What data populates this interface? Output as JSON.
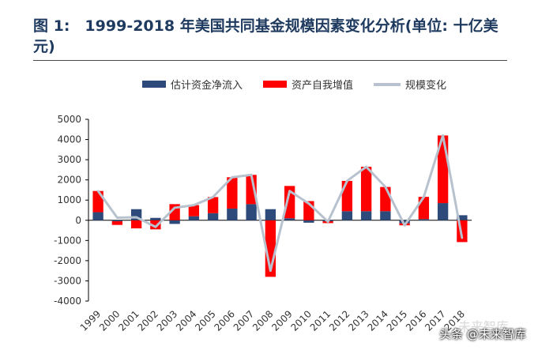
{
  "chart_data": {
    "type": "bar",
    "title": "图 1:　1999-2018 年美国共同基金规模因素变化分析(单位: 十亿美元)",
    "categories": [
      "1999",
      "2000",
      "2001",
      "2002",
      "2003",
      "2004",
      "2005",
      "2006",
      "2007",
      "2008",
      "2009",
      "2010",
      "2011",
      "2012",
      "2013",
      "2014",
      "2015",
      "2016",
      "2017",
      "2018"
    ],
    "series": [
      {
        "name": "估计资金净流入",
        "color": "#2e4a7a",
        "values": [
          400,
          -50,
          550,
          120,
          -180,
          200,
          350,
          580,
          800,
          550,
          100,
          -120,
          -50,
          450,
          450,
          450,
          -150,
          60,
          850,
          250
        ]
      },
      {
        "name": "资产自我增值",
        "color": "#ff0000",
        "values": [
          1050,
          -180,
          -400,
          -450,
          800,
          550,
          800,
          1550,
          1450,
          -2800,
          1600,
          950,
          -90,
          1500,
          2200,
          1200,
          -100,
          1100,
          3350,
          -1080
        ]
      },
      {
        "name": "规模变化",
        "color": "#b8c2cf",
        "values": [
          1450,
          130,
          150,
          -330,
          620,
          750,
          1150,
          2130,
          2250,
          -2500,
          1450,
          830,
          -70,
          1950,
          2650,
          1650,
          -250,
          1150,
          4200,
          -880
        ]
      }
    ],
    "ylim": [
      -4000,
      5000
    ],
    "yticks": [
      "5000",
      "4000",
      "3000",
      "2000",
      "1000",
      "0",
      "-1000",
      "-2000",
      "-3000",
      "-4000"
    ],
    "xlabel": "",
    "ylabel": "",
    "legend_position": "top"
  },
  "watermark": {
    "line1": "未来智库",
    "line2": "头条 @未来智库"
  }
}
